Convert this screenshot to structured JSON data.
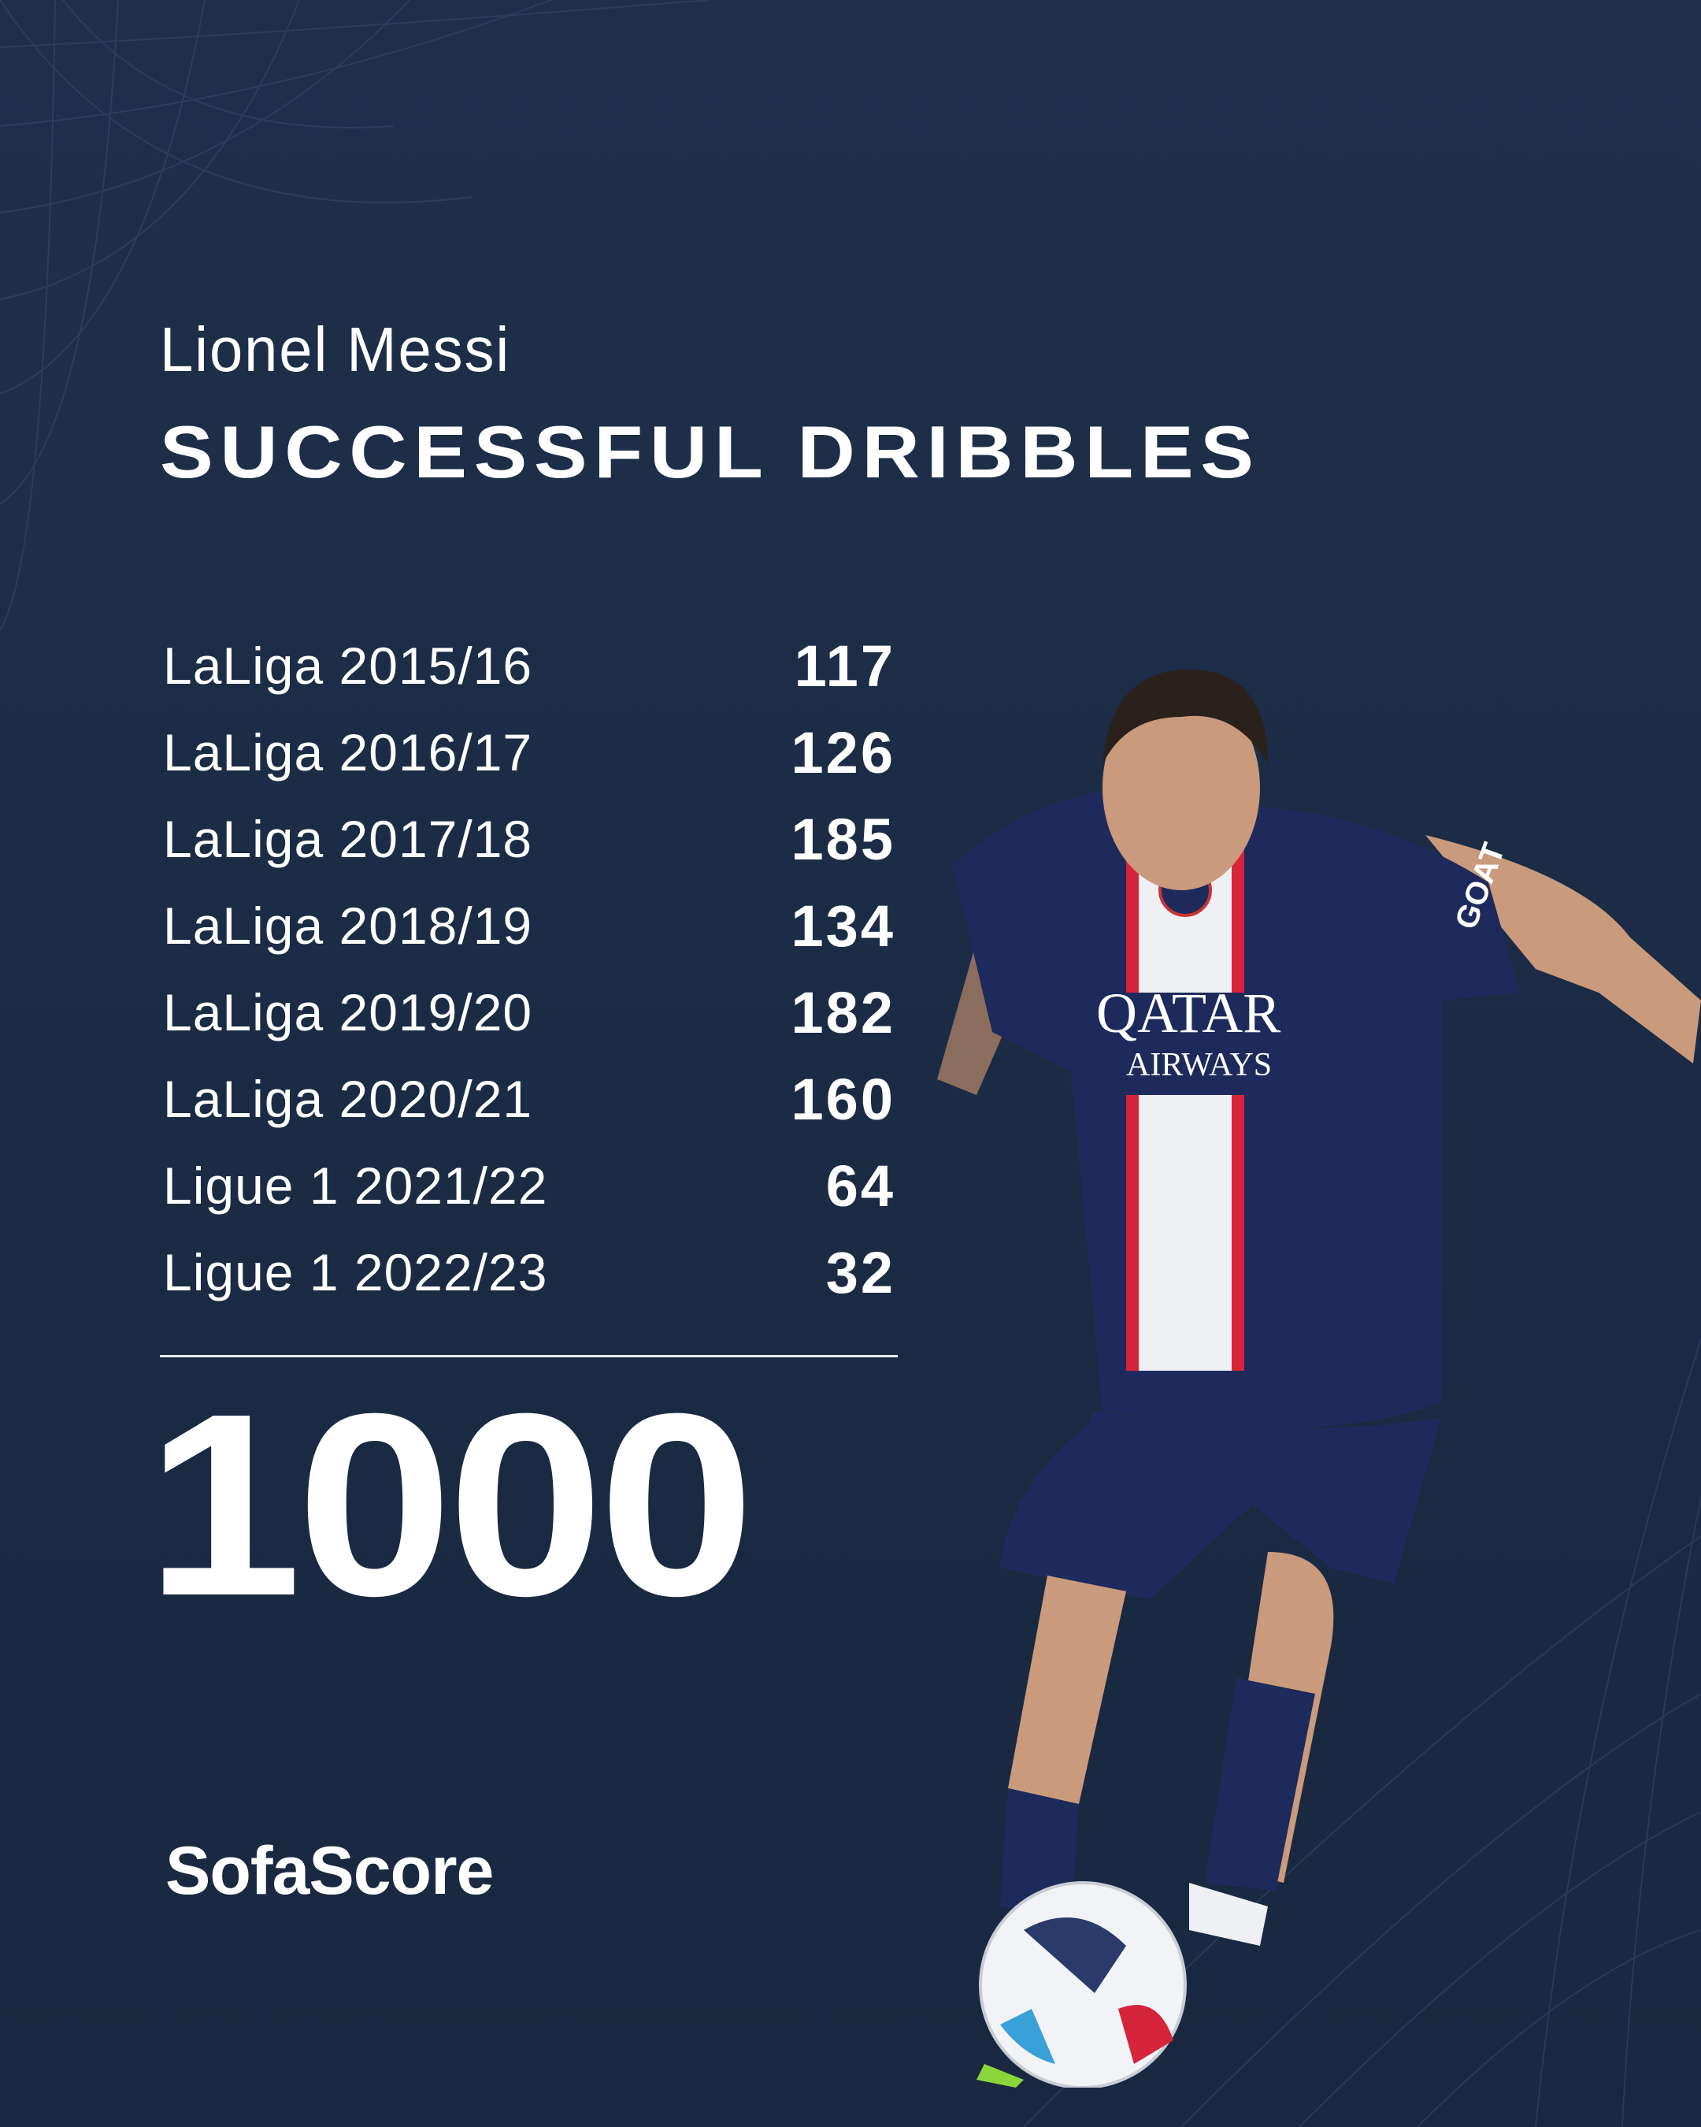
{
  "header": {
    "player_name": "Lionel Messi",
    "stat_title": "SUCCESSFUL DRIBBLES"
  },
  "rows": [
    {
      "label": "LaLiga 2015/16",
      "value": "117"
    },
    {
      "label": "LaLiga 2016/17",
      "value": "126"
    },
    {
      "label": "LaLiga 2017/18",
      "value": "185"
    },
    {
      "label": "LaLiga 2018/19",
      "value": "134"
    },
    {
      "label": "LaLiga 2019/20",
      "value": "182"
    },
    {
      "label": "LaLiga 2020/21",
      "value": "160"
    },
    {
      "label": "Ligue 1 2021/22",
      "value": "64"
    },
    {
      "label": "Ligue 1 2022/23",
      "value": "32"
    }
  ],
  "total": "1000",
  "brand": "SofaScore",
  "photo": {
    "shirt_sponsor": "QATAR AIRWAYS",
    "shirt_text": "GOAT"
  },
  "colors": {
    "background": "#1d2c46",
    "text": "#ffffff",
    "shirt": "#1f2a5c",
    "stripe_red": "#d6243a"
  }
}
